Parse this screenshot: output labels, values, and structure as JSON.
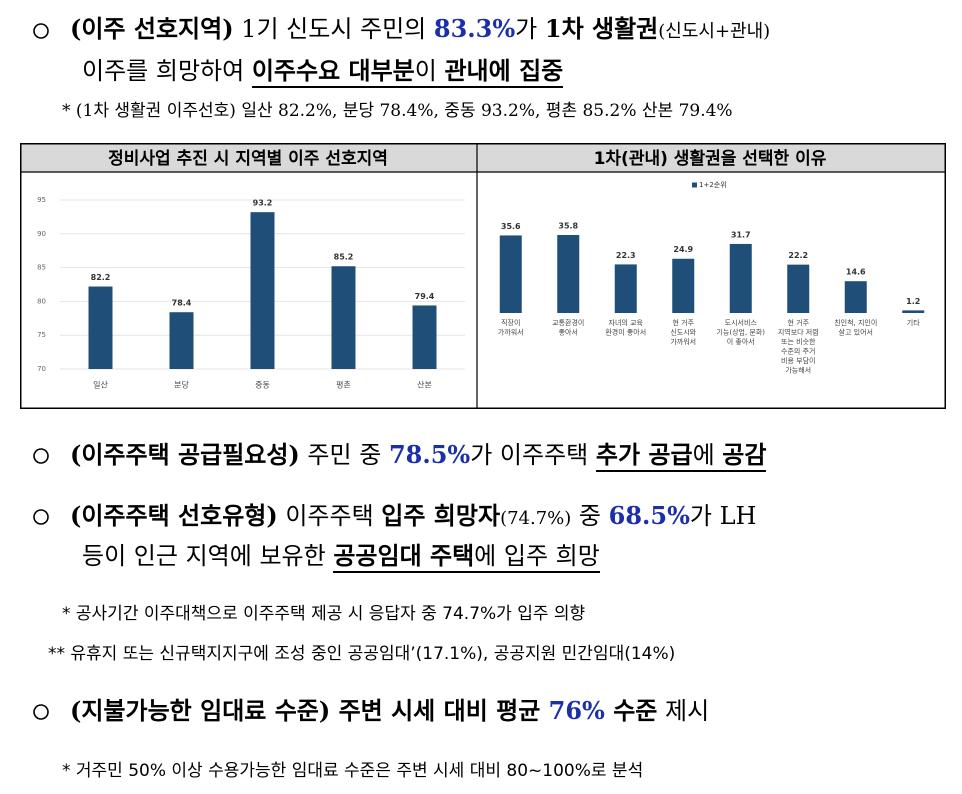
{
  "sections": [
    {
      "lines": [
        [
          "(이주 선호지역)",
          " 1기 신도시 주민의 ",
          "83.3%",
          "가 ",
          "1차 생활권",
          "(신도시+관내)"
        ],
        [
          "이주를 희망하여 ",
          "이주수요 대부분",
          "이 ",
          "관내에 집중"
        ]
      ],
      "notes": [
        "* (1차 생활권 이주선호) 일산 82.2%, 분당 78.4%, 중동 93.2%, 평촌 85.2% 산본 79.4%"
      ]
    },
    {
      "lines": [
        [
          "(이주주택 공급필요성)",
          " 주민 중 ",
          "78.5%",
          "가 이주주택 ",
          "추가 공급",
          "에 ",
          "공감"
        ]
      ],
      "notes": []
    },
    {
      "lines": [
        [
          "(이주주택 선호유형)",
          " 이주주택 ",
          "입주 희망자",
          "(74.7%)",
          " 중 ",
          "68.5%",
          "가 LH"
        ],
        [
          "등이 인근 지역에 보유한 ",
          "공공임대 주택",
          "에 입주 희망"
        ]
      ],
      "notes": [
        "* 공사기간 이주대책으로 이주주택 제공 시 응답자 중 74.7%가 입주 의향",
        "** 유휴지 또는 신규택지지구에 조성 중인 공공임대’(17.1%), 공공지원 민간임대(14%)"
      ]
    },
    {
      "lines": [
        [
          "(지불가능한 임대료 수준)",
          " 주변 시세 대비 평균 ",
          "76%",
          " 수준",
          " 제시"
        ]
      ],
      "notes": [
        "* 거주민 50% 이상 수용가능한 임대료 수준은 주변 시세 대비 80~100%로 분석"
      ]
    }
  ],
  "chart_data": [
    {
      "type": "bar",
      "title": "정비사업 추진 시 지역별 이주 선호지역",
      "categories": [
        "일산",
        "분당",
        "중동",
        "평촌",
        "산본"
      ],
      "values": [
        82.2,
        78.4,
        93.2,
        85.2,
        79.4
      ],
      "color": "#1f4e79",
      "ylim": [
        70,
        95
      ],
      "yticks": [
        70,
        75,
        80,
        85,
        90,
        95
      ],
      "grid": true
    },
    {
      "type": "bar",
      "title": "1차(관내) 생활권을 선택한 이유",
      "categories": [
        "직장이\n가까워서",
        "교통환경이\n좋아서",
        "자녀의 교육\n환경이 좋아서",
        "현 거주\n신도시와\n가까워서",
        "도시서비스\n기능(상업, 문화)\n이 좋아서",
        "현 거주\n지역보다 저렴\n또는 비슷한\n수준의 주거\n비용 부담이\n가능해서",
        "친인척, 지인이\n살고 있어서",
        "기타"
      ],
      "series": [
        {
          "name": "1+2순위",
          "color": "#1f4e79",
          "values": [
            35.6,
            35.8,
            22.3,
            24.9,
            31.7,
            22.2,
            14.6,
            1.2
          ]
        }
      ],
      "legend": "top"
    }
  ]
}
